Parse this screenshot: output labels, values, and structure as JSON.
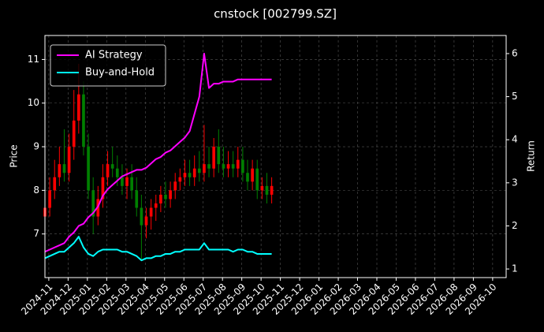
{
  "chart_data": {
    "type": "candlestick",
    "title": "cnstock [002799.SZ]",
    "ylabel": "Price",
    "y2label": "Return",
    "x": [
      -0.2,
      0.05,
      0.3,
      0.55,
      0.8,
      1.05,
      1.3,
      1.55,
      1.8,
      2.05,
      2.3,
      2.55,
      2.8,
      3.05,
      3.3,
      3.55,
      3.8,
      4.05,
      4.3,
      4.55,
      4.8,
      5.05,
      5.3,
      5.55,
      5.8,
      6.05,
      6.3,
      6.55,
      6.8,
      7.05,
      7.3,
      7.55,
      7.8,
      8.05,
      8.3,
      8.55,
      8.8,
      9.05,
      9.3,
      9.55,
      9.8,
      10.05,
      10.3,
      10.55,
      10.8,
      11.05,
      11.3,
      11.55
    ],
    "open": [
      7.4,
      7.6,
      8.0,
      8.3,
      8.6,
      8.4,
      9.0,
      9.6,
      10.2,
      9.0,
      8.0,
      7.4,
      7.8,
      8.3,
      8.6,
      8.5,
      8.3,
      8.1,
      8.3,
      8.0,
      7.6,
      7.2,
      7.4,
      7.6,
      7.7,
      7.9,
      7.8,
      8.0,
      8.2,
      8.3,
      8.4,
      8.3,
      8.5,
      8.4,
      8.6,
      8.5,
      9.0,
      8.6,
      8.5,
      8.6,
      8.5,
      8.7,
      8.4,
      8.2,
      8.5,
      8.0,
      8.1,
      7.9
    ],
    "high": [
      7.9,
      8.3,
      8.7,
      9.0,
      9.4,
      9.3,
      10.3,
      10.9,
      10.5,
      9.3,
      8.3,
      8.1,
      8.6,
      8.9,
      9.0,
      8.8,
      8.6,
      8.5,
      8.6,
      8.3,
      7.9,
      7.6,
      7.8,
      7.9,
      8.1,
      8.2,
      8.2,
      8.4,
      8.5,
      8.7,
      8.7,
      8.8,
      8.9,
      9.5,
      9.0,
      9.2,
      9.4,
      9.0,
      8.9,
      8.9,
      9.0,
      9.0,
      8.7,
      8.7,
      8.7,
      8.3,
      8.4,
      8.3
    ],
    "low": [
      7.2,
      7.4,
      7.8,
      8.1,
      8.2,
      8.2,
      8.7,
      9.3,
      8.8,
      7.8,
      7.0,
      7.2,
      7.6,
      8.1,
      8.3,
      8.1,
      7.9,
      7.8,
      7.8,
      7.4,
      6.4,
      6.9,
      7.1,
      7.3,
      7.5,
      7.6,
      7.6,
      7.8,
      8.0,
      8.1,
      8.1,
      8.1,
      8.2,
      8.2,
      8.3,
      8.3,
      8.4,
      8.3,
      8.3,
      8.3,
      8.3,
      8.2,
      8.0,
      8.0,
      7.8,
      7.8,
      7.7,
      7.7
    ],
    "close": [
      7.6,
      8.0,
      8.3,
      8.6,
      8.4,
      9.0,
      9.6,
      10.2,
      9.0,
      8.0,
      7.4,
      7.8,
      8.3,
      8.6,
      8.5,
      8.3,
      8.1,
      8.3,
      8.0,
      7.6,
      7.2,
      7.4,
      7.6,
      7.7,
      7.9,
      7.8,
      8.0,
      8.2,
      8.3,
      8.4,
      8.3,
      8.5,
      8.4,
      8.6,
      8.5,
      9.0,
      8.6,
      8.5,
      8.6,
      8.5,
      8.7,
      8.4,
      8.2,
      8.5,
      8.0,
      8.1,
      7.9,
      8.1
    ],
    "up_color": "#ff0000",
    "down_color": "#008000",
    "series": [
      {
        "name": "AI Strategy",
        "color": "#ff00ff",
        "axis": "y2",
        "values": [
          1.4,
          1.45,
          1.5,
          1.55,
          1.6,
          1.75,
          1.85,
          2.0,
          2.05,
          2.2,
          2.3,
          2.45,
          2.7,
          2.85,
          2.95,
          3.05,
          3.15,
          3.2,
          3.25,
          3.3,
          3.3,
          3.35,
          3.45,
          3.55,
          3.6,
          3.7,
          3.75,
          3.85,
          3.95,
          4.05,
          4.2,
          4.6,
          5.0,
          6.0,
          5.2,
          5.3,
          5.3,
          5.35,
          5.35,
          5.35,
          5.4,
          5.4,
          5.4,
          5.4,
          5.4,
          5.4,
          5.4,
          5.4
        ]
      },
      {
        "name": "Buy-and-Hold",
        "color": "#00ffff",
        "axis": "y2",
        "values": [
          1.25,
          1.3,
          1.35,
          1.4,
          1.4,
          1.5,
          1.6,
          1.75,
          1.5,
          1.35,
          1.3,
          1.4,
          1.45,
          1.45,
          1.45,
          1.45,
          1.4,
          1.4,
          1.35,
          1.3,
          1.2,
          1.25,
          1.25,
          1.3,
          1.3,
          1.35,
          1.35,
          1.4,
          1.4,
          1.45,
          1.45,
          1.45,
          1.45,
          1.6,
          1.45,
          1.45,
          1.45,
          1.45,
          1.45,
          1.4,
          1.45,
          1.45,
          1.4,
          1.4,
          1.35,
          1.35,
          1.35,
          1.35
        ]
      }
    ],
    "xlim": [
      -0.2,
      23.7
    ],
    "ylim": [
      6.0,
      11.55
    ],
    "y2lim": [
      0.8,
      6.42
    ],
    "xticks": [
      {
        "value": 0,
        "label": "2024-11"
      },
      {
        "value": 1,
        "label": "2024-12"
      },
      {
        "value": 2,
        "label": "2025-01"
      },
      {
        "value": 3,
        "label": "2025-02"
      },
      {
        "value": 4,
        "label": "2025-03"
      },
      {
        "value": 5,
        "label": "2025-04"
      },
      {
        "value": 6,
        "label": "2025-05"
      },
      {
        "value": 7,
        "label": "2025-06"
      },
      {
        "value": 8,
        "label": "2025-07"
      },
      {
        "value": 9,
        "label": "2025-08"
      },
      {
        "value": 10,
        "label": "2025-09"
      },
      {
        "value": 11,
        "label": "2025-10"
      },
      {
        "value": 12,
        "label": "2025-11"
      },
      {
        "value": 13,
        "label": "2025-12"
      },
      {
        "value": 14,
        "label": "2026-01"
      },
      {
        "value": 15,
        "label": "2026-02"
      },
      {
        "value": 16,
        "label": "2026-03"
      },
      {
        "value": 17,
        "label": "2026-04"
      },
      {
        "value": 18,
        "label": "2026-05"
      },
      {
        "value": 19,
        "label": "2026-06"
      },
      {
        "value": 20,
        "label": "2026-07"
      },
      {
        "value": 21,
        "label": "2026-08"
      },
      {
        "value": 22,
        "label": "2026-09"
      },
      {
        "value": 23,
        "label": "2026-10"
      }
    ],
    "yticks": [
      7,
      8,
      9,
      10,
      11
    ],
    "y2ticks": [
      1,
      2,
      3,
      4,
      5,
      6
    ],
    "grid": true,
    "legend": "upper left"
  }
}
